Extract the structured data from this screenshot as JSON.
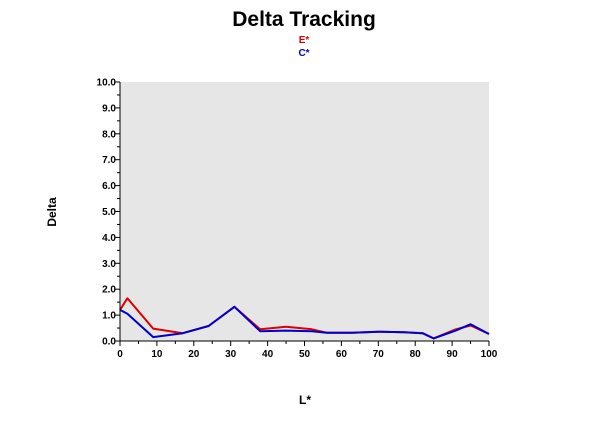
{
  "chart_data": {
    "type": "line",
    "title": "Delta Tracking",
    "xlabel": "L*",
    "ylabel": "Delta",
    "xlim": [
      0,
      100
    ],
    "ylim": [
      0,
      10
    ],
    "x_ticks": [
      "0",
      "10",
      "20",
      "30",
      "40",
      "50",
      "60",
      "70",
      "80",
      "90",
      "100"
    ],
    "y_ticks": [
      "0.0",
      "1.0",
      "2.0",
      "3.0",
      "4.0",
      "5.0",
      "6.0",
      "7.0",
      "8.0",
      "9.0",
      "10.0"
    ],
    "grid": false,
    "legend_position": "top-center",
    "plot_background": "#e6e6e6",
    "series": [
      {
        "name": "E*",
        "color": "#dd0000",
        "points": [
          [
            0,
            1.2
          ],
          [
            2,
            1.65
          ],
          [
            9,
            0.48
          ],
          [
            17,
            0.3
          ],
          [
            24,
            0.58
          ],
          [
            31,
            1.32
          ],
          [
            38,
            0.45
          ],
          [
            45,
            0.55
          ],
          [
            52,
            0.45
          ],
          [
            56,
            0.32
          ],
          [
            63,
            0.32
          ],
          [
            70,
            0.36
          ],
          [
            77,
            0.34
          ],
          [
            82,
            0.3
          ],
          [
            85,
            0.1
          ],
          [
            91,
            0.45
          ],
          [
            95,
            0.6
          ],
          [
            100,
            0.27
          ]
        ]
      },
      {
        "name": "C*",
        "color": "#0000cc",
        "points": [
          [
            0,
            1.2
          ],
          [
            2,
            1.05
          ],
          [
            9,
            0.15
          ],
          [
            17,
            0.3
          ],
          [
            24,
            0.58
          ],
          [
            31,
            1.32
          ],
          [
            38,
            0.38
          ],
          [
            45,
            0.4
          ],
          [
            52,
            0.38
          ],
          [
            56,
            0.32
          ],
          [
            63,
            0.32
          ],
          [
            70,
            0.36
          ],
          [
            77,
            0.34
          ],
          [
            82,
            0.3
          ],
          [
            85,
            0.1
          ],
          [
            91,
            0.4
          ],
          [
            95,
            0.65
          ],
          [
            100,
            0.27
          ]
        ]
      }
    ]
  }
}
